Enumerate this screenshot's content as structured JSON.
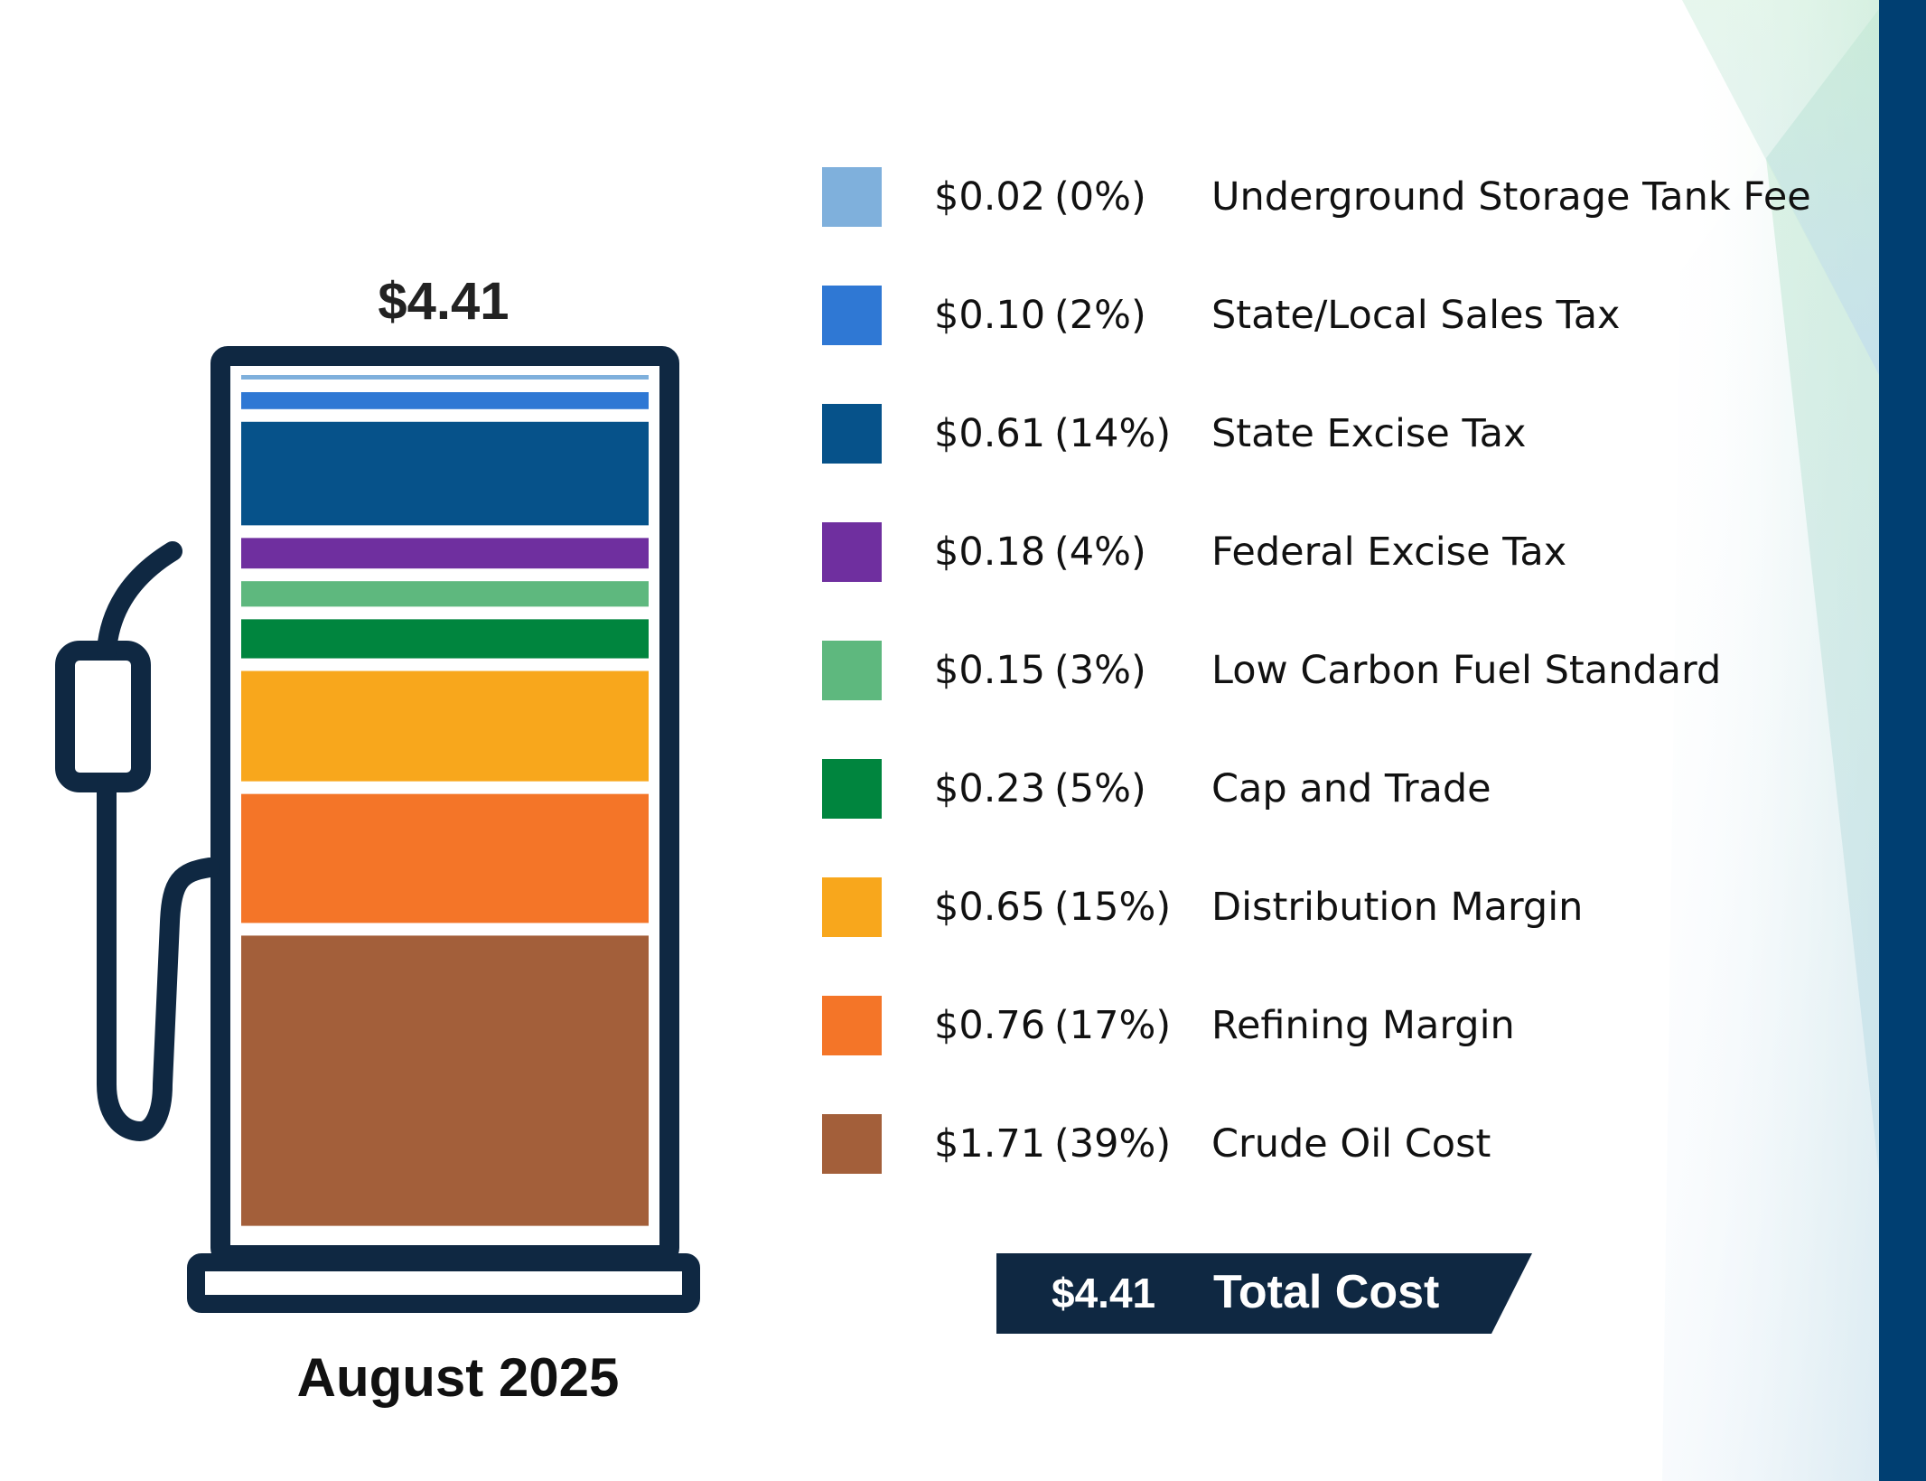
{
  "chart_data": {
    "type": "bar",
    "stacked": true,
    "total_label": "$4.41",
    "period": "August 2025",
    "categories": [
      "Underground Storage Tank Fee",
      "State/Local Sales Tax",
      "State Excise Tax",
      "Federal Excise Tax",
      "Low Carbon Fuel Standard",
      "Cap and Trade",
      "Distribution Margin",
      "Refining Margin",
      "Crude Oil Cost"
    ],
    "values": [
      0.02,
      0.1,
      0.61,
      0.18,
      0.15,
      0.23,
      0.65,
      0.76,
      1.71
    ],
    "value_labels": [
      "$0.02",
      "$0.10",
      "$0.61",
      "$0.18",
      "$0.15",
      "$0.23",
      "$0.65",
      "$0.76",
      "$1.71"
    ],
    "percent_labels": [
      "(0%)",
      "(2%)",
      "(14%)",
      "(4%)",
      "(3%)",
      "(5%)",
      "(15%)",
      "(17%)",
      "(39%)"
    ],
    "colors": [
      "#7fb0dc",
      "#2f78d4",
      "#06528a",
      "#6f2f9f",
      "#5eb87e",
      "#00853e",
      "#f8a71c",
      "#f47528",
      "#a35f3a"
    ],
    "legend_position": "right",
    "total": {
      "value": "$4.41",
      "label": "Total Cost"
    }
  },
  "theme": {
    "dark": "#0f2842",
    "accent_bar": "#003f72"
  }
}
